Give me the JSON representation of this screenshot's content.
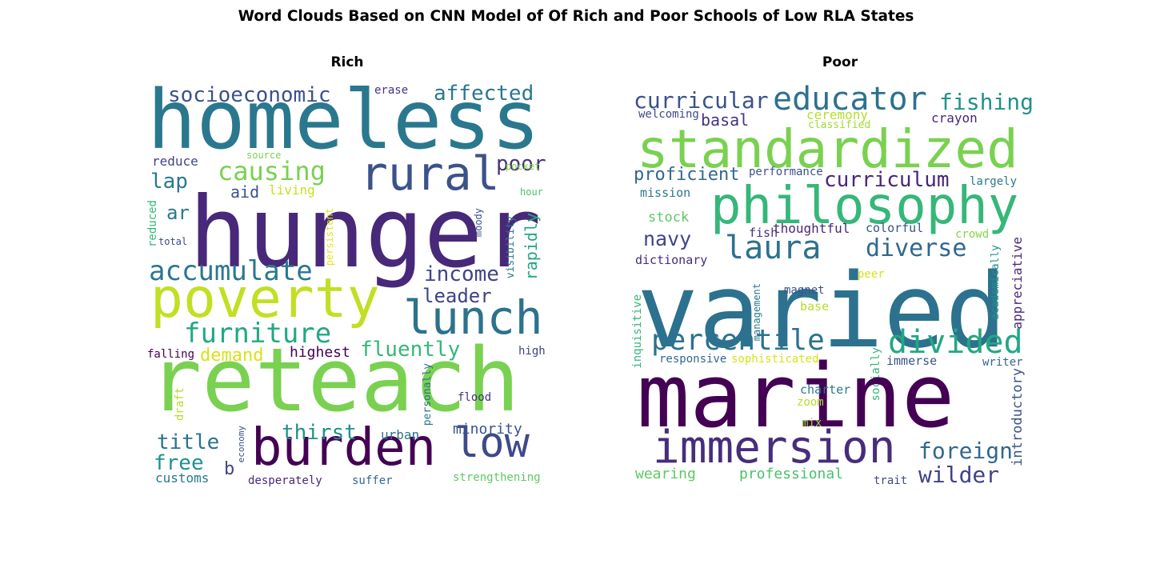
{
  "title": "Word Clouds Based on CNN Model of Of Rich and Poor Schools of Low RLA States",
  "chart_data": {
    "type": "wordcloud",
    "panels": [
      {
        "id": "rich",
        "title": "Rich",
        "words": [
          {
            "text": "homeless",
            "color": "#2a788e"
          },
          {
            "text": "hunger",
            "color": "#482878"
          },
          {
            "text": "reteach",
            "color": "#7ad151"
          },
          {
            "text": "poverty",
            "color": "#c2df23"
          },
          {
            "text": "rural",
            "color": "#3b528b"
          },
          {
            "text": "lunch",
            "color": "#2c728e"
          },
          {
            "text": "burden",
            "color": "#440154"
          },
          {
            "text": "low",
            "color": "#3e4a89"
          },
          {
            "text": "accumulate",
            "color": "#2a788e"
          },
          {
            "text": "furniture",
            "color": "#22a884"
          },
          {
            "text": "causing",
            "color": "#7ad151"
          },
          {
            "text": "socioeconomic",
            "color": "#3b528b"
          },
          {
            "text": "affected",
            "color": "#2a788e"
          },
          {
            "text": "poor",
            "color": "#46337e"
          },
          {
            "text": "income",
            "color": "#414487"
          },
          {
            "text": "leader",
            "color": "#404387"
          },
          {
            "text": "fluently",
            "color": "#35b779"
          },
          {
            "text": "thirst",
            "color": "#21918c"
          },
          {
            "text": "title",
            "color": "#2c728e"
          },
          {
            "text": "free",
            "color": "#21918c"
          },
          {
            "text": "lap",
            "color": "#2a788e"
          },
          {
            "text": "ar",
            "color": "#29798e"
          },
          {
            "text": "aid",
            "color": "#3b528b"
          },
          {
            "text": "rapidly",
            "color": "#22a884"
          },
          {
            "text": "demand",
            "color": "#d8e219"
          },
          {
            "text": "highest",
            "color": "#440154"
          },
          {
            "text": "minority",
            "color": "#3b528b"
          },
          {
            "text": "urban",
            "color": "#2c728e"
          },
          {
            "text": "customs",
            "color": "#2a788e"
          },
          {
            "text": "b",
            "color": "#414487"
          },
          {
            "text": "living",
            "color": "#c8e020"
          },
          {
            "text": "reduce",
            "color": "#414487"
          },
          {
            "text": "source",
            "color": "#7ad151"
          },
          {
            "text": "erase",
            "color": "#46337e"
          },
          {
            "text": "pocket",
            "color": "#86d549"
          },
          {
            "text": "hour",
            "color": "#4ac16d"
          },
          {
            "text": "reduced",
            "color": "#35b779"
          },
          {
            "text": "total",
            "color": "#3e4a89"
          },
          {
            "text": "persistent",
            "color": "#e5e419"
          },
          {
            "text": "moody",
            "color": "#3b528b"
          },
          {
            "text": "visibility",
            "color": "#2a788e"
          },
          {
            "text": "falling",
            "color": "#440154"
          },
          {
            "text": "high",
            "color": "#404387"
          },
          {
            "text": "draft",
            "color": "#b5de2b"
          },
          {
            "text": "personally",
            "color": "#2c728e"
          },
          {
            "text": "flood",
            "color": "#46337e"
          },
          {
            "text": "economy",
            "color": "#3b528b"
          },
          {
            "text": "desperately",
            "color": "#482878"
          },
          {
            "text": "suffer",
            "color": "#31688e"
          },
          {
            "text": "strengthening",
            "color": "#5ec962"
          }
        ]
      },
      {
        "id": "poor",
        "title": "Poor",
        "words": [
          {
            "text": "curricular",
            "color": "#3b528b"
          },
          {
            "text": "educator",
            "color": "#2c728e"
          },
          {
            "text": "fishing",
            "color": "#21918c"
          },
          {
            "text": "welcoming",
            "color": "#3e4a89"
          },
          {
            "text": "ceremony",
            "color": "#b5de2b"
          },
          {
            "text": "classified",
            "color": "#a0da39"
          },
          {
            "text": "crayon",
            "color": "#482878"
          },
          {
            "text": "basal",
            "color": "#46337e"
          },
          {
            "text": "standardized",
            "color": "#7ad151"
          },
          {
            "text": "proficient",
            "color": "#31688e"
          },
          {
            "text": "performance",
            "color": "#3b528b"
          },
          {
            "text": "curriculum",
            "color": "#482878"
          },
          {
            "text": "largely",
            "color": "#2a788e"
          },
          {
            "text": "mission",
            "color": "#2a788e"
          },
          {
            "text": "philosophy",
            "color": "#35b779"
          },
          {
            "text": "stock",
            "color": "#5ec962"
          },
          {
            "text": "navy",
            "color": "#414487"
          },
          {
            "text": "fish",
            "color": "#46337e"
          },
          {
            "text": "thoughtful",
            "color": "#482878"
          },
          {
            "text": "colorful",
            "color": "#3b528b"
          },
          {
            "text": "crowd",
            "color": "#86d549"
          },
          {
            "text": "laura",
            "color": "#2c728e"
          },
          {
            "text": "diverse",
            "color": "#31688e"
          },
          {
            "text": "dictionary",
            "color": "#472d7b"
          },
          {
            "text": "varied",
            "color": "#2c728e"
          },
          {
            "text": "peer",
            "color": "#d8e219"
          },
          {
            "text": "magnet",
            "color": "#3b528b"
          },
          {
            "text": "base",
            "color": "#b5de2b"
          },
          {
            "text": "management",
            "color": "#2a788e"
          },
          {
            "text": "academically",
            "color": "#21918c"
          },
          {
            "text": "appreciative",
            "color": "#482878"
          },
          {
            "text": "inquisitive",
            "color": "#35b779"
          },
          {
            "text": "percentile",
            "color": "#2c728e"
          },
          {
            "text": "divided",
            "color": "#22a884"
          },
          {
            "text": "responsive",
            "color": "#31688e"
          },
          {
            "text": "sophisticated",
            "color": "#d8e219"
          },
          {
            "text": "socially",
            "color": "#35b779"
          },
          {
            "text": "immerse",
            "color": "#3b528b"
          },
          {
            "text": "writer",
            "color": "#31688e"
          },
          {
            "text": "marine",
            "color": "#440154"
          },
          {
            "text": "charter",
            "color": "#2a788e"
          },
          {
            "text": "zoom",
            "color": "#b5de2b"
          },
          {
            "text": "introductory",
            "color": "#3b528b"
          },
          {
            "text": "mix",
            "color": "#8fd744"
          },
          {
            "text": "immersion",
            "color": "#472d7b"
          },
          {
            "text": "foreign",
            "color": "#31688e"
          },
          {
            "text": "wilder",
            "color": "#404387"
          },
          {
            "text": "wearing",
            "color": "#5ec962"
          },
          {
            "text": "professional",
            "color": "#4ac16d"
          },
          {
            "text": "trait",
            "color": "#3e4a89"
          }
        ]
      }
    ]
  }
}
